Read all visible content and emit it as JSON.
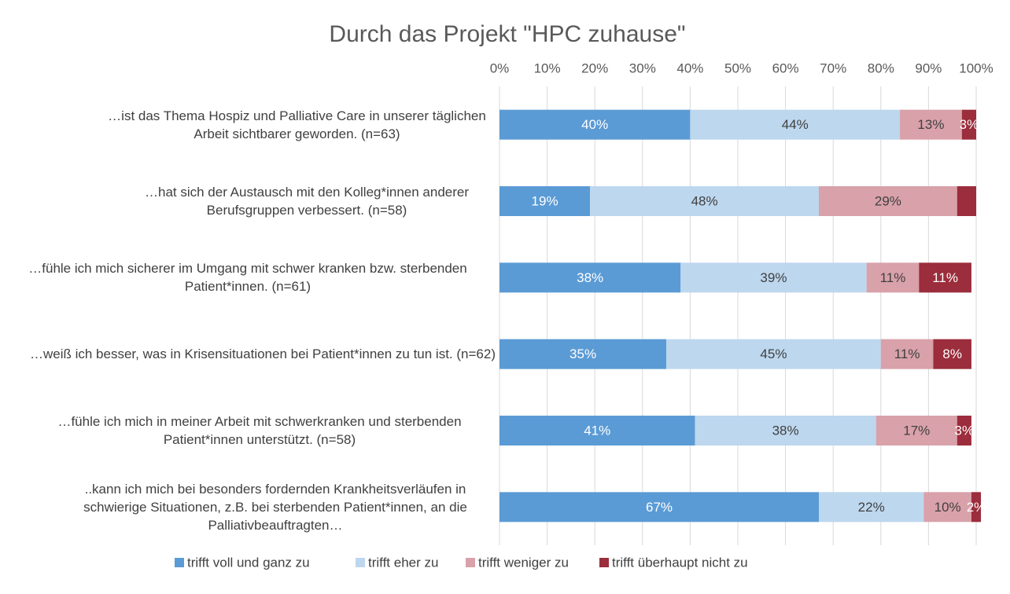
{
  "chart_data": {
    "type": "stacked_bar_horizontal",
    "title": "Durch das Projekt \"HPC zuhause\"",
    "categories": [
      "…ist das Thema Hospiz und Palliative Care in unserer täglichen Arbeit sichtbarer geworden. (n=63)",
      "…hat sich der Austausch mit den Kolleg*innen anderer Berufsgruppen verbessert. (n=58)",
      "…fühle ich mich sicherer im Umgang mit schwer kranken bzw. sterbenden Patient*innen. (n=61)",
      "…weiß ich besser, was in Krisensituationen bei Patient*innen zu tun ist. (n=62)",
      "…fühle ich mich in meiner Arbeit mit schwerkranken und sterbenden Patient*innen unterstützt. (n=58)",
      "..kann ich mich bei besonders fordernden Krankheitsverläufen in schwierige Situationen, z.B. bei sterbenden Patient*innen, an die Palliativbeauftragten…"
    ],
    "series": [
      {
        "name": "trifft voll und ganz zu",
        "color": "#5b9bd5",
        "values": [
          40,
          19,
          38,
          35,
          41,
          67
        ],
        "value_labels": [
          "40%",
          "19%",
          "38%",
          "35%",
          "41%",
          "67%"
        ]
      },
      {
        "name": "trifft eher zu",
        "color": "#bdd7ee",
        "values": [
          44,
          48,
          39,
          45,
          38,
          22
        ],
        "value_labels": [
          "44%",
          "48%",
          "39%",
          "45%",
          "38%",
          "22%"
        ]
      },
      {
        "name": "trifft weniger zu",
        "color": "#d9a1aa",
        "values": [
          13,
          29,
          11,
          11,
          17,
          10
        ],
        "value_labels": [
          "13%",
          "29%",
          "11%",
          "11%",
          "17%",
          "10%"
        ]
      },
      {
        "name": "trifft überhaupt nicht zu",
        "color": "#9b2d3c",
        "values": [
          3,
          4,
          11,
          8,
          3,
          2
        ],
        "value_labels": [
          "3%",
          null,
          "11%",
          "8%",
          "3%",
          "2%"
        ]
      }
    ],
    "xlim": [
      0,
      100
    ],
    "xticks": [
      {
        "value": 0,
        "label": "0%"
      },
      {
        "value": 10,
        "label": "10%"
      },
      {
        "value": 20,
        "label": "20%"
      },
      {
        "value": 30,
        "label": "30%"
      },
      {
        "value": 40,
        "label": "40%"
      },
      {
        "value": 50,
        "label": "50%"
      },
      {
        "value": 60,
        "label": "60%"
      },
      {
        "value": 70,
        "label": "70%"
      },
      {
        "value": 80,
        "label": "80%"
      },
      {
        "value": 90,
        "label": "90%"
      },
      {
        "value": 100,
        "label": "100%"
      }
    ],
    "grid": true,
    "legend": "bottom"
  }
}
